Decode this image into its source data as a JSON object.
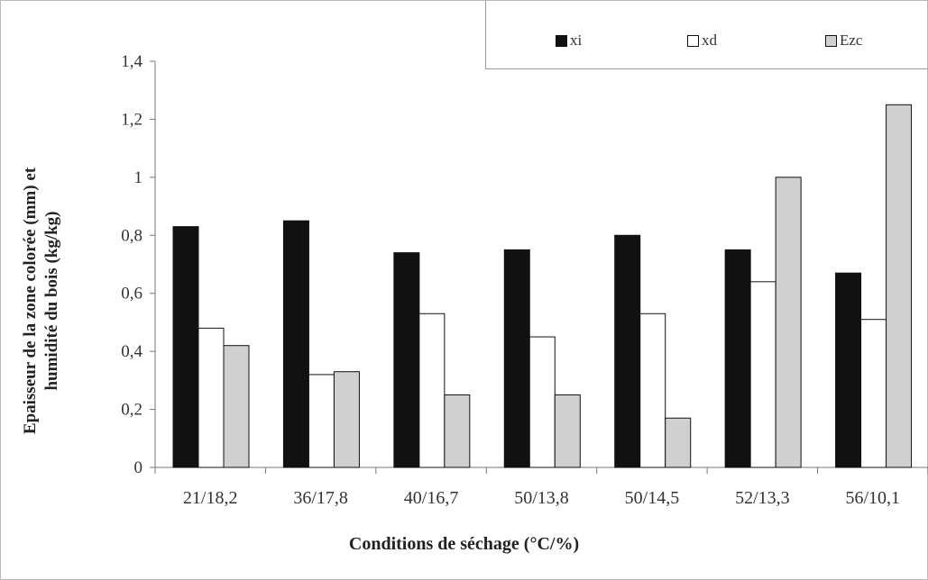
{
  "chart_data": {
    "type": "bar",
    "title": "",
    "xlabel": "Conditions de séchage (°C/%)",
    "ylabel_line1": "Epaisseur de la zone colorée (mm) et",
    "ylabel_line2": "humidité du bois (kg/kg)",
    "categories": [
      "21/18,2",
      "36/17,8",
      "40/16,7",
      "50/13,8",
      "50/14,5",
      "52/13,3",
      "56/10,1"
    ],
    "series": [
      {
        "name": "xi",
        "color": "#111111",
        "values": [
          0.83,
          0.85,
          0.74,
          0.75,
          0.8,
          0.75,
          0.67
        ]
      },
      {
        "name": "xd",
        "color": "#ffffff",
        "values": [
          0.48,
          0.32,
          0.53,
          0.45,
          0.53,
          0.64,
          0.51
        ]
      },
      {
        "name": "Ezc",
        "color": "#d0d0d0",
        "values": [
          0.42,
          0.33,
          0.25,
          0.25,
          0.17,
          1.0,
          1.25
        ]
      }
    ],
    "ylim": [
      0,
      1.4
    ],
    "yticks": [
      "0",
      "0,2",
      "0,4",
      "0,6",
      "0,8",
      "1",
      "1,2",
      "1,4"
    ],
    "grid": false,
    "legend_position": "top-right"
  }
}
